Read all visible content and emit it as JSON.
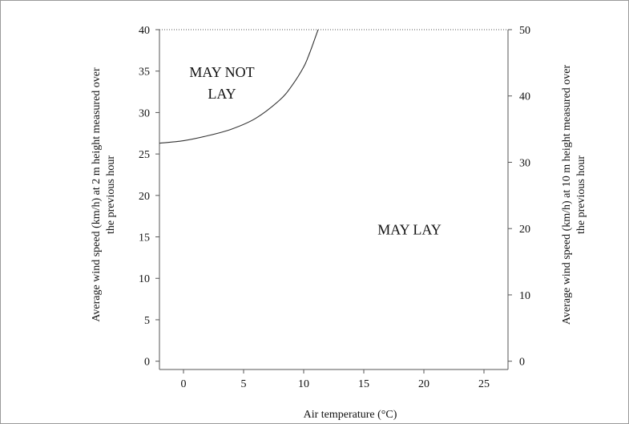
{
  "chart_data": {
    "type": "line",
    "title": "",
    "xlabel": "Air temperature (°C)",
    "ylabel_left": [
      "Average wind speed (km/h) at 2 m height measured over",
      "the previous hour"
    ],
    "ylabel_right": [
      "Average wind speed (km/h) at 10 m height measured over",
      "the previous hour"
    ],
    "xlim": [
      -2,
      27
    ],
    "ylim_left": [
      -1,
      40
    ],
    "ylim_right": [
      -1.25,
      50
    ],
    "x_ticks": [
      0,
      5,
      10,
      15,
      20,
      25
    ],
    "y_ticks_left": [
      0,
      5,
      10,
      15,
      20,
      25,
      30,
      35,
      40
    ],
    "y_ticks_right": [
      0,
      10,
      20,
      30,
      40,
      50
    ],
    "grid": false,
    "legend": "none",
    "series": [
      {
        "x": [
          -2,
          0,
          2,
          4,
          6,
          8,
          9,
          10,
          10.5,
          11,
          11.2
        ],
        "y": [
          26.3,
          26.6,
          27.2,
          28.0,
          29.3,
          31.5,
          33.2,
          35.5,
          37.2,
          39.2,
          40
        ]
      }
    ],
    "annotations": [
      {
        "text": [
          "MAY NOT",
          "LAY"
        ],
        "x": 3.2,
        "y": [
          34.3,
          31.7
        ]
      },
      {
        "text": [
          "MAY LAY"
        ],
        "x": 18.8,
        "y": [
          15.3
        ]
      }
    ]
  }
}
